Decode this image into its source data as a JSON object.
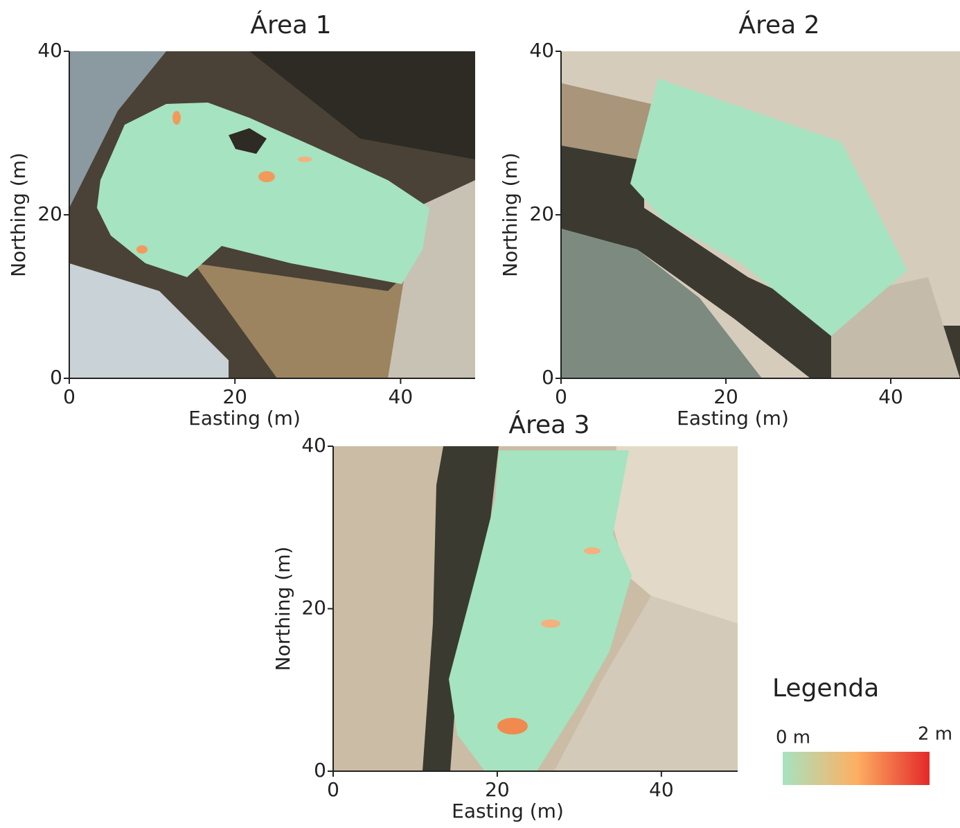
{
  "chart_data": [
    {
      "type": "map",
      "title": "Área 1",
      "xlabel": "Easting (m)",
      "ylabel": "Northing (m)",
      "xlim": [
        0,
        49
      ],
      "ylim": [
        0,
        40
      ],
      "xticks": [
        0,
        20,
        40
      ],
      "yticks": [
        0,
        20,
        40
      ]
    },
    {
      "type": "map",
      "title": "Área 2",
      "xlabel": "Easting (m)",
      "ylabel": "Northing (m)",
      "xlim": [
        0,
        48.4
      ],
      "ylim": [
        0,
        40
      ],
      "xticks": [
        0,
        20,
        40
      ],
      "yticks": [
        0,
        20,
        40
      ]
    },
    {
      "type": "map",
      "title": "Área 3",
      "xlabel": "Easting (m)",
      "ylabel": "Northing (m)",
      "xlim": [
        0,
        49.3
      ],
      "ylim": [
        0,
        40
      ],
      "xticks": [
        0,
        20,
        40
      ],
      "yticks": [
        0,
        20,
        40
      ]
    }
  ],
  "legend": {
    "title": "Legenda",
    "min_label": "0 m",
    "max_label": "2 m",
    "colors": [
      "#a6e3c0",
      "#fdb063",
      "#e3292a"
    ]
  }
}
